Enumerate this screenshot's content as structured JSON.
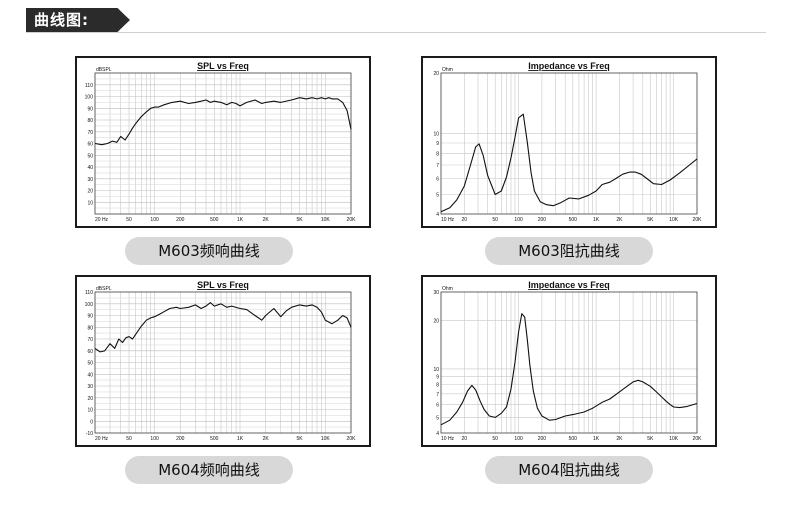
{
  "header": {
    "title": "曲线图:"
  },
  "chart_data": [
    {
      "id": "spl1",
      "type": "line",
      "title": "SPL vs Freq",
      "ylabel": "dBSPL",
      "xscale": "log",
      "xlim": [
        20,
        20000
      ],
      "ylim": [
        0,
        120
      ],
      "ytick_values": [
        10,
        20,
        30,
        40,
        50,
        60,
        70,
        80,
        90,
        100,
        110
      ],
      "xtick_labels": [
        "20 Hz",
        "50",
        "100",
        "200",
        "500",
        "1K",
        "2K",
        "5K",
        "10K",
        "20K"
      ],
      "grid": true,
      "caption": "M603频响曲线",
      "series": [
        {
          "x": [
            20,
            24,
            28,
            32,
            36,
            40,
            45,
            50,
            55,
            60,
            70,
            80,
            90,
            100,
            110,
            130,
            160,
            200,
            250,
            300,
            350,
            400,
            450,
            500,
            600,
            700,
            800,
            900,
            1000,
            1200,
            1500,
            1800,
            2000,
            2500,
            3000,
            4000,
            5000,
            6000,
            7000,
            8000,
            9000,
            10000,
            11000,
            12000,
            14000,
            16000,
            18000,
            20000
          ],
          "y": [
            60,
            59,
            60,
            62,
            61,
            66,
            63,
            68,
            73,
            77,
            83,
            87,
            90,
            91,
            91,
            93,
            95,
            96,
            94,
            95,
            96,
            97,
            95,
            96,
            95,
            93,
            95,
            94,
            92,
            95,
            97,
            94,
            95,
            96,
            95,
            97,
            99,
            98,
            99,
            98,
            99,
            98,
            99,
            98,
            98,
            95,
            88,
            72
          ]
        }
      ]
    },
    {
      "id": "imp1",
      "type": "line",
      "title": "Impedance vs Freq",
      "ylabel": "Ohm",
      "xscale": "log",
      "yscale": "log",
      "xlim": [
        10,
        20000
      ],
      "ylim": [
        4,
        20
      ],
      "ytick_labels": [
        "4",
        "5",
        "6",
        "7",
        "8",
        "9",
        "10",
        "20"
      ],
      "xtick_labels": [
        "10 Hz",
        "20",
        "50",
        "100",
        "200",
        "500",
        "1K",
        "2K",
        "5K",
        "10K",
        "20K"
      ],
      "grid": true,
      "caption": "M603阻抗曲线",
      "series": [
        {
          "x": [
            10,
            13,
            16,
            20,
            24,
            28,
            31,
            35,
            40,
            50,
            60,
            70,
            80,
            90,
            100,
            115,
            130,
            145,
            160,
            190,
            230,
            280,
            350,
            450,
            600,
            800,
            1000,
            1200,
            1500,
            1800,
            2200,
            2700,
            3200,
            3800,
            4500,
            5500,
            7000,
            9000,
            12000,
            16000,
            20000
          ],
          "y": [
            4.1,
            4.3,
            4.7,
            5.5,
            7.0,
            8.6,
            8.9,
            7.8,
            6.2,
            5.0,
            5.2,
            6.1,
            7.6,
            9.6,
            12.0,
            12.5,
            9.0,
            6.4,
            5.2,
            4.6,
            4.45,
            4.4,
            4.55,
            4.8,
            4.75,
            4.95,
            5.2,
            5.6,
            5.75,
            6.0,
            6.3,
            6.45,
            6.45,
            6.3,
            6.0,
            5.65,
            5.6,
            5.9,
            6.4,
            7.0,
            7.5
          ]
        }
      ]
    },
    {
      "id": "spl2",
      "type": "line",
      "title": "SPL vs Freq",
      "ylabel": "dBSPL",
      "xscale": "log",
      "xlim": [
        20,
        20000
      ],
      "ylim": [
        -10,
        110
      ],
      "ytick_values": [
        -10,
        0,
        10,
        20,
        30,
        40,
        50,
        60,
        70,
        80,
        90,
        100,
        110
      ],
      "xtick_labels": [
        "20 Hz",
        "50",
        "100",
        "200",
        "500",
        "1K",
        "2K",
        "5K",
        "10K",
        "20K"
      ],
      "grid": true,
      "caption": "M604频响曲线",
      "series": [
        {
          "x": [
            20,
            23,
            26,
            30,
            34,
            38,
            42,
            46,
            50,
            55,
            60,
            70,
            80,
            90,
            100,
            120,
            150,
            180,
            200,
            250,
            300,
            350,
            400,
            450,
            500,
            600,
            700,
            800,
            1000,
            1200,
            1500,
            1800,
            2000,
            2500,
            3000,
            3500,
            4000,
            5000,
            6000,
            7000,
            8000,
            9000,
            10000,
            12000,
            14000,
            16000,
            18000,
            20000
          ],
          "y": [
            62,
            59,
            60,
            66,
            62,
            70,
            67,
            71,
            72,
            70,
            74,
            81,
            86,
            88,
            89,
            92,
            96,
            97,
            96,
            97,
            99,
            96,
            98,
            101,
            98,
            100,
            97,
            98,
            96,
            95,
            90,
            86,
            90,
            96,
            89,
            94,
            97,
            99,
            98,
            99,
            97,
            93,
            86,
            83,
            86,
            90,
            88,
            80
          ]
        }
      ]
    },
    {
      "id": "imp2",
      "type": "line",
      "title": "Impedance vs Freq",
      "ylabel": "Ohm",
      "xscale": "log",
      "yscale": "log",
      "xlim": [
        10,
        20000
      ],
      "ylim": [
        4,
        30
      ],
      "ytick_labels": [
        "4",
        "5",
        "6",
        "7",
        "8",
        "9",
        "10",
        "20",
        "30"
      ],
      "xtick_labels": [
        "10 Hz",
        "20",
        "50",
        "100",
        "200",
        "500",
        "1K",
        "2K",
        "5K",
        "10K",
        "20K"
      ],
      "grid": true,
      "caption": "M604阻抗曲线",
      "series": [
        {
          "x": [
            10,
            13,
            16,
            19,
            22,
            25,
            28,
            32,
            36,
            42,
            50,
            60,
            70,
            80,
            90,
            100,
            110,
            120,
            130,
            140,
            155,
            175,
            200,
            250,
            300,
            400,
            500,
            700,
            900,
            1200,
            1500,
            2000,
            2500,
            3000,
            3500,
            4000,
            5000,
            6000,
            7000,
            8000,
            9000,
            10000,
            12000,
            15000,
            20000
          ],
          "y": [
            4.5,
            4.8,
            5.4,
            6.2,
            7.3,
            7.9,
            7.4,
            6.3,
            5.6,
            5.1,
            5.0,
            5.3,
            5.8,
            7.5,
            11,
            17,
            22,
            21,
            15,
            10.5,
            7.3,
            5.7,
            5.1,
            4.8,
            4.85,
            5.1,
            5.2,
            5.4,
            5.7,
            6.2,
            6.5,
            7.2,
            7.8,
            8.3,
            8.5,
            8.3,
            7.8,
            7.2,
            6.7,
            6.3,
            6.0,
            5.8,
            5.75,
            5.85,
            6.1
          ]
        }
      ]
    }
  ]
}
